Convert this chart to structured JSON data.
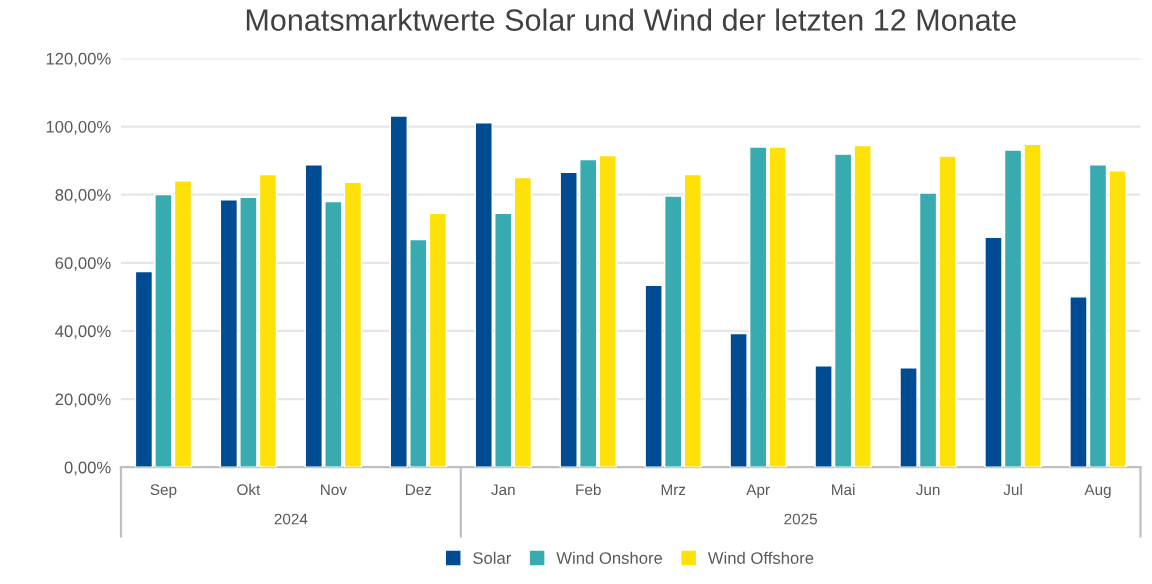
{
  "chart_data": {
    "type": "bar",
    "title": "Monatsmarktwerte Solar und Wind der letzten 12 Monate",
    "categories": [
      "Sep",
      "Okt",
      "Nov",
      "Dez",
      "Jan",
      "Feb",
      "Mrz",
      "Apr",
      "Mai",
      "Jun",
      "Jul",
      "Aug"
    ],
    "series": [
      {
        "name": "Solar",
        "color": "#004c93",
        "values": [
          57.4,
          78.5,
          88.8,
          103.1,
          101.1,
          86.6,
          53.4,
          39.2,
          29.8,
          29.2,
          67.5,
          50.0
        ]
      },
      {
        "name": "Wind Onshore",
        "color": "#38abb0",
        "values": [
          80.0,
          79.2,
          78.0,
          66.8,
          74.5,
          90.3,
          79.6,
          94.0,
          91.9,
          80.5,
          93.1,
          88.8
        ]
      },
      {
        "name": "Wind Offshore",
        "color": "#ffe10a",
        "values": [
          84.1,
          85.9,
          83.6,
          74.5,
          85.0,
          91.5,
          85.9,
          94.0,
          94.4,
          91.3,
          94.8,
          87.0
        ]
      }
    ],
    "annotations": [
      "2024",
      "2025"
    ],
    "ylim": [
      0,
      120
    ],
    "yticks": [
      {
        "value": 0,
        "label": "0,00%"
      },
      {
        "value": 20,
        "label": "20,00%"
      },
      {
        "value": 40,
        "label": "40,00%"
      },
      {
        "value": 60,
        "label": "60,00%"
      },
      {
        "value": 80,
        "label": "80,00%"
      },
      {
        "value": 100,
        "label": "100,00%"
      },
      {
        "value": 120,
        "label": "120,00%"
      }
    ],
    "grid": "y",
    "legend": "bottom"
  }
}
